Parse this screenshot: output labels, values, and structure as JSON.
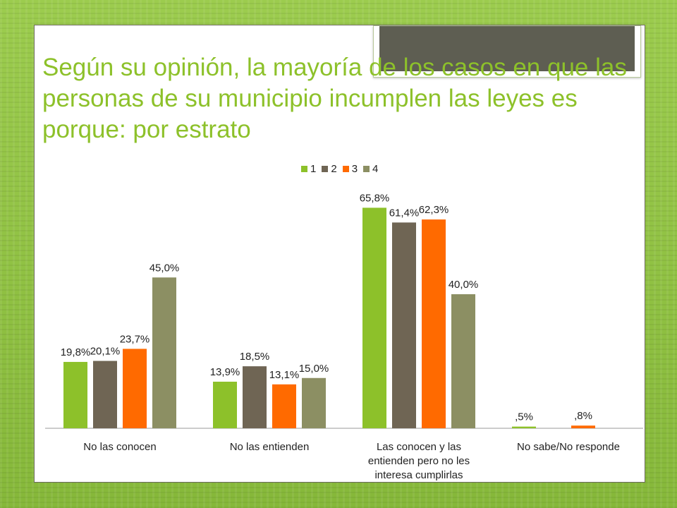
{
  "title": "Según su opinión, la mayoría de los casos en que las personas de su municipio incumplen las leyes es porque: por estrato",
  "colors": {
    "title": "#8dc12a",
    "series": [
      "#8dc12a",
      "#6f6554",
      "#ff6a00",
      "#8c8f63"
    ]
  },
  "chart_data": {
    "type": "bar",
    "categories": [
      "No las conocen",
      "No las entienden",
      "Las conocen y las entienden pero no les interesa cumplirlas",
      "No sabe/No responde"
    ],
    "category_lines": [
      [
        "No las conocen"
      ],
      [
        "No las entienden"
      ],
      [
        "Las conocen y las",
        "entienden pero no les",
        "interesa cumplirlas"
      ],
      [
        "No sabe/No responde"
      ]
    ],
    "series": [
      {
        "name": "1",
        "values": [
          19.8,
          13.9,
          65.8,
          0.5
        ],
        "labels": [
          "19,8%",
          "13,9%",
          "65,8%",
          ",5%"
        ]
      },
      {
        "name": "2",
        "values": [
          20.1,
          18.5,
          61.4,
          null
        ],
        "labels": [
          "20,1%",
          "18,5%",
          "61,4%",
          ""
        ]
      },
      {
        "name": "3",
        "values": [
          23.7,
          13.1,
          62.3,
          0.8
        ],
        "labels": [
          "23,7%",
          "13,1%",
          "62,3%",
          ",8%"
        ]
      },
      {
        "name": "4",
        "values": [
          45.0,
          15.0,
          40.0,
          null
        ],
        "labels": [
          "45,0%",
          "15,0%",
          "40,0%",
          ""
        ]
      }
    ],
    "legend_position": "top",
    "grid": false,
    "ylim": [
      0,
      70
    ]
  }
}
